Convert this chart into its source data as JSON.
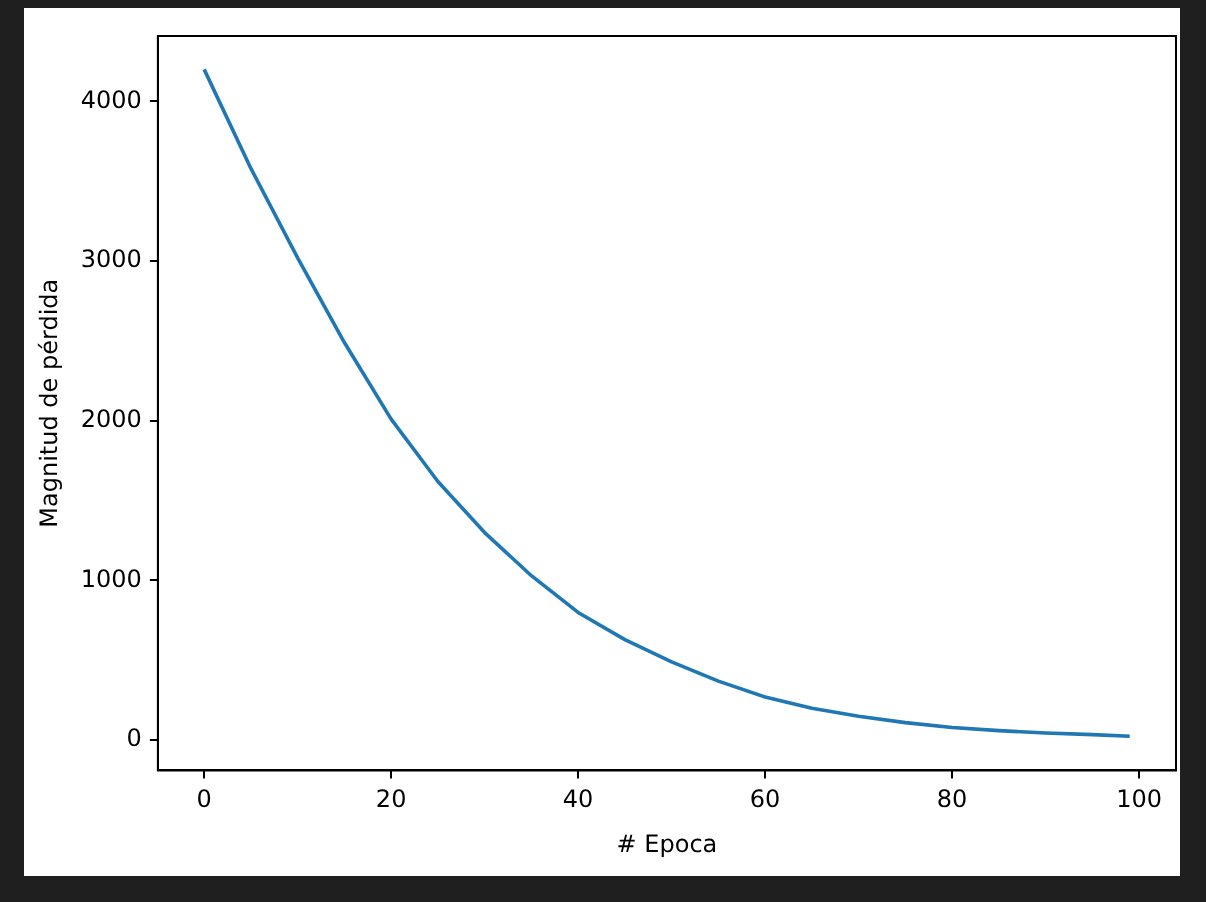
{
  "chart_data": {
    "type": "line",
    "xlabel": "# Epoca",
    "ylabel": "Magnitud de pérdida",
    "xlim": [
      -4.95,
      103.95
    ],
    "xticks": [
      0,
      20,
      40,
      60,
      80,
      100
    ],
    "ylim": [
      -189,
      4409
    ],
    "yticks": [
      0,
      1000,
      2000,
      3000,
      4000
    ],
    "marker": "none",
    "line_style": "solid",
    "series": [
      {
        "color": "#1f77b4",
        "x": [
          0,
          5,
          10,
          15,
          20,
          25,
          30,
          35,
          40,
          45,
          50,
          55,
          60,
          65,
          70,
          75,
          80,
          85,
          90,
          95,
          99
        ],
        "values": [
          4200,
          3580,
          3020,
          2490,
          2010,
          1620,
          1300,
          1030,
          800,
          630,
          490,
          370,
          270,
          200,
          150,
          110,
          80,
          60,
          45,
          35,
          25
        ]
      }
    ]
  }
}
